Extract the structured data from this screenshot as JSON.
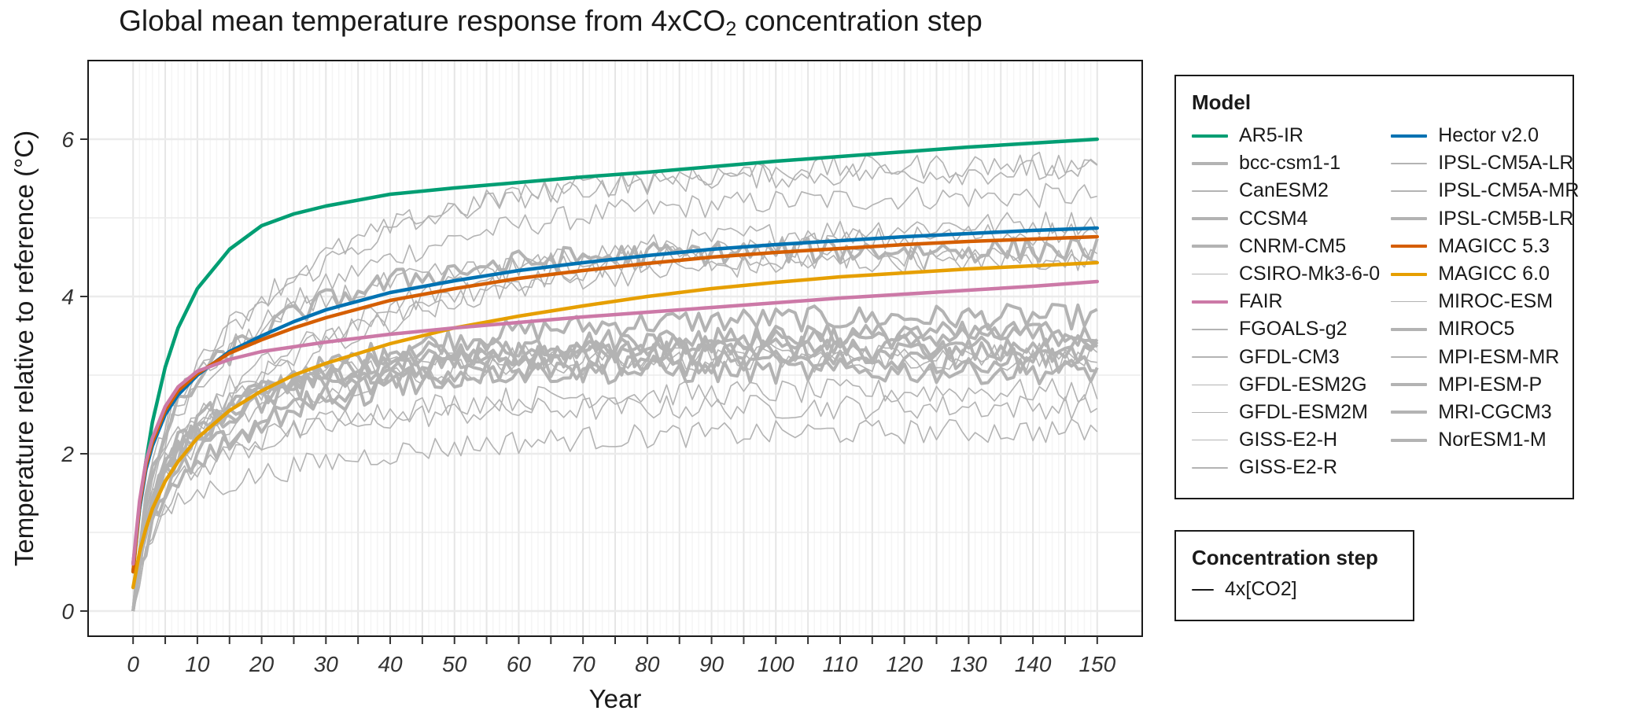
{
  "chart_data": {
    "type": "line",
    "title_prefix": "Global mean temperature response from 4xCO",
    "title_sub": "2",
    "title_suffix": " concentration step",
    "xlabel": "Year",
    "ylabel": "Temperature relative to reference (°C)",
    "xlim": [
      -7,
      157
    ],
    "ylim": [
      -0.32,
      7.0
    ],
    "x_ticks": [
      0,
      10,
      20,
      30,
      40,
      50,
      60,
      70,
      80,
      90,
      100,
      110,
      120,
      130,
      140,
      150
    ],
    "x_tick_labels": [
      "0",
      "10",
      "20",
      "30",
      "40",
      "50",
      "60",
      "70",
      "80",
      "90",
      "100",
      "110",
      "120",
      "130",
      "140",
      "150"
    ],
    "y_ticks": [
      0,
      2,
      4,
      6
    ],
    "y_tick_labels": [
      "0",
      "2",
      "4",
      "6"
    ],
    "grid": true,
    "legend_placement": "right",
    "legend_title": "Model",
    "legend2_title": "Concentration step",
    "legend2_items": [
      {
        "label": "4x[CO2]",
        "color": "#1a1a1a"
      }
    ],
    "emulators": [
      {
        "name": "AR5-IR",
        "color": "#009E73",
        "points": [
          [
            0,
            0.5
          ],
          [
            1,
            1.3
          ],
          [
            2,
            1.9
          ],
          [
            3,
            2.4
          ],
          [
            5,
            3.1
          ],
          [
            7,
            3.6
          ],
          [
            10,
            4.1
          ],
          [
            15,
            4.6
          ],
          [
            20,
            4.9
          ],
          [
            25,
            5.05
          ],
          [
            30,
            5.15
          ],
          [
            40,
            5.3
          ],
          [
            50,
            5.38
          ],
          [
            60,
            5.45
          ],
          [
            70,
            5.52
          ],
          [
            80,
            5.58
          ],
          [
            90,
            5.65
          ],
          [
            100,
            5.72
          ],
          [
            110,
            5.78
          ],
          [
            120,
            5.84
          ],
          [
            130,
            5.9
          ],
          [
            140,
            5.95
          ],
          [
            150,
            6.0
          ]
        ]
      },
      {
        "name": "Hector v2.0",
        "color": "#0072B2",
        "points": [
          [
            0,
            0.6
          ],
          [
            1,
            1.3
          ],
          [
            2,
            1.8
          ],
          [
            3,
            2.1
          ],
          [
            5,
            2.5
          ],
          [
            7,
            2.75
          ],
          [
            10,
            3.0
          ],
          [
            15,
            3.3
          ],
          [
            20,
            3.5
          ],
          [
            25,
            3.68
          ],
          [
            30,
            3.83
          ],
          [
            40,
            4.05
          ],
          [
            50,
            4.2
          ],
          [
            60,
            4.33
          ],
          [
            70,
            4.43
          ],
          [
            80,
            4.52
          ],
          [
            90,
            4.6
          ],
          [
            100,
            4.66
          ],
          [
            110,
            4.71
          ],
          [
            120,
            4.76
          ],
          [
            130,
            4.8
          ],
          [
            140,
            4.84
          ],
          [
            150,
            4.87
          ]
        ]
      },
      {
        "name": "MAGICC 5.3",
        "color": "#D55E00",
        "points": [
          [
            0,
            0.5
          ],
          [
            1,
            1.35
          ],
          [
            2,
            1.85
          ],
          [
            3,
            2.15
          ],
          [
            5,
            2.55
          ],
          [
            7,
            2.8
          ],
          [
            10,
            3.02
          ],
          [
            15,
            3.28
          ],
          [
            20,
            3.45
          ],
          [
            25,
            3.6
          ],
          [
            30,
            3.73
          ],
          [
            40,
            3.95
          ],
          [
            50,
            4.1
          ],
          [
            60,
            4.23
          ],
          [
            70,
            4.33
          ],
          [
            80,
            4.42
          ],
          [
            90,
            4.5
          ],
          [
            100,
            4.56
          ],
          [
            110,
            4.61
          ],
          [
            120,
            4.66
          ],
          [
            130,
            4.7
          ],
          [
            140,
            4.73
          ],
          [
            150,
            4.76
          ]
        ]
      },
      {
        "name": "MAGICC 6.0",
        "color": "#E69F00",
        "points": [
          [
            0,
            0.3
          ],
          [
            1,
            0.75
          ],
          [
            2,
            1.05
          ],
          [
            3,
            1.3
          ],
          [
            5,
            1.65
          ],
          [
            7,
            1.9
          ],
          [
            10,
            2.2
          ],
          [
            15,
            2.55
          ],
          [
            20,
            2.8
          ],
          [
            25,
            3.0
          ],
          [
            30,
            3.15
          ],
          [
            40,
            3.4
          ],
          [
            50,
            3.6
          ],
          [
            60,
            3.75
          ],
          [
            70,
            3.88
          ],
          [
            80,
            4.0
          ],
          [
            90,
            4.1
          ],
          [
            100,
            4.18
          ],
          [
            110,
            4.25
          ],
          [
            120,
            4.3
          ],
          [
            130,
            4.35
          ],
          [
            140,
            4.39
          ],
          [
            150,
            4.43
          ]
        ]
      },
      {
        "name": "FAIR",
        "color": "#CC79A7",
        "points": [
          [
            0,
            0.6
          ],
          [
            1,
            1.4
          ],
          [
            2,
            1.9
          ],
          [
            3,
            2.2
          ],
          [
            5,
            2.6
          ],
          [
            7,
            2.85
          ],
          [
            10,
            3.05
          ],
          [
            15,
            3.2
          ],
          [
            20,
            3.3
          ],
          [
            25,
            3.36
          ],
          [
            30,
            3.42
          ],
          [
            40,
            3.52
          ],
          [
            50,
            3.6
          ],
          [
            60,
            3.67
          ],
          [
            70,
            3.74
          ],
          [
            80,
            3.8
          ],
          [
            90,
            3.86
          ],
          [
            100,
            3.92
          ],
          [
            110,
            3.98
          ],
          [
            120,
            4.03
          ],
          [
            130,
            4.08
          ],
          [
            140,
            4.13
          ],
          [
            150,
            4.19
          ]
        ]
      }
    ],
    "esm_color": "#b3b3b3",
    "esm_models": [
      {
        "name": "bcc-csm1-1",
        "thick": true,
        "eq": 3.35,
        "tau": 18,
        "fast": 1.5
      },
      {
        "name": "CanESM2",
        "thick": false,
        "eq": 5.3,
        "tau": 28,
        "fast": 1.9
      },
      {
        "name": "CCSM4",
        "thick": true,
        "eq": 3.5,
        "tau": 22,
        "fast": 1.6
      },
      {
        "name": "CNRM-CM5",
        "thick": true,
        "eq": 3.75,
        "tau": 25,
        "fast": 1.6
      },
      {
        "name": "CSIRO-Mk3-6-0",
        "thick": false,
        "eq": 5.0,
        "tau": 35,
        "fast": 1.4
      },
      {
        "name": "FGOALS-g2",
        "thick": false,
        "eq": 3.2,
        "tau": 20,
        "fast": 1.5
      },
      {
        "name": "GFDL-CM3",
        "thick": false,
        "eq": 4.5,
        "tau": 30,
        "fast": 1.8
      },
      {
        "name": "GFDL-ESM2G",
        "thick": false,
        "eq": 2.6,
        "tau": 18,
        "fast": 1.2
      },
      {
        "name": "GFDL-ESM2M",
        "thick": false,
        "eq": 2.8,
        "tau": 22,
        "fast": 1.3
      },
      {
        "name": "GISS-E2-H",
        "thick": false,
        "eq": 3.25,
        "tau": 15,
        "fast": 1.7
      },
      {
        "name": "GISS-E2-R",
        "thick": false,
        "eq": 2.3,
        "tau": 30,
        "fast": 1.2
      },
      {
        "name": "IPSL-CM5A-LR",
        "thick": false,
        "eq": 5.6,
        "tau": 25,
        "fast": 2.0
      },
      {
        "name": "IPSL-CM5A-MR",
        "thick": false,
        "eq": 5.7,
        "tau": 28,
        "fast": 2.0
      },
      {
        "name": "IPSL-CM5B-LR",
        "thick": true,
        "eq": 3.05,
        "tau": 12,
        "fast": 1.6
      },
      {
        "name": "MIROC-ESM",
        "thick": false,
        "eq": 4.9,
        "tau": 40,
        "fast": 1.6
      },
      {
        "name": "MIROC5",
        "thick": true,
        "eq": 3.3,
        "tau": 20,
        "fast": 1.6
      },
      {
        "name": "MPI-ESM-MR",
        "thick": false,
        "eq": 4.5,
        "tau": 20,
        "fast": 2.0
      },
      {
        "name": "MPI-ESM-P",
        "thick": true,
        "eq": 4.6,
        "tau": 22,
        "fast": 2.0
      },
      {
        "name": "MRI-CGCM3",
        "thick": true,
        "eq": 3.2,
        "tau": 25,
        "fast": 1.4
      },
      {
        "name": "NorESM1-M",
        "thick": true,
        "eq": 3.55,
        "tau": 30,
        "fast": 1.3
      }
    ],
    "legend_col1": [
      {
        "label": "AR5-IR",
        "color": "#009E73",
        "width": 4
      },
      {
        "label": "bcc-csm1-1",
        "color": "#b3b3b3",
        "width": 4
      },
      {
        "label": "CanESM2",
        "color": "#b3b3b3",
        "width": 1.5
      },
      {
        "label": "CCSM4",
        "color": "#b3b3b3",
        "width": 4
      },
      {
        "label": "CNRM-CM5",
        "color": "#b3b3b3",
        "width": 4
      },
      {
        "label": "CSIRO-Mk3-6-0",
        "color": "#b3b3b3",
        "width": 1.5
      },
      {
        "label": "FAIR",
        "color": "#CC79A7",
        "width": 4
      },
      {
        "label": "FGOALS-g2",
        "color": "#b3b3b3",
        "width": 1.5
      },
      {
        "label": "GFDL-CM3",
        "color": "#b3b3b3",
        "width": 1.5
      },
      {
        "label": "GFDL-ESM2G",
        "color": "#b3b3b3",
        "width": 1.5
      },
      {
        "label": "GFDL-ESM2M",
        "color": "#b3b3b3",
        "width": 1.5
      },
      {
        "label": "GISS-E2-H",
        "color": "#b3b3b3",
        "width": 1.5
      },
      {
        "label": "GISS-E2-R",
        "color": "#b3b3b3",
        "width": 1.5
      }
    ],
    "legend_col2": [
      {
        "label": "Hector v2.0",
        "color": "#0072B2",
        "width": 4
      },
      {
        "label": "IPSL-CM5A-LR",
        "color": "#b3b3b3",
        "width": 1.5
      },
      {
        "label": "IPSL-CM5A-MR",
        "color": "#b3b3b3",
        "width": 1.5
      },
      {
        "label": "IPSL-CM5B-LR",
        "color": "#b3b3b3",
        "width": 4
      },
      {
        "label": "MAGICC 5.3",
        "color": "#D55E00",
        "width": 4
      },
      {
        "label": "MAGICC 6.0",
        "color": "#E69F00",
        "width": 4
      },
      {
        "label": "MIROC-ESM",
        "color": "#b3b3b3",
        "width": 1.5
      },
      {
        "label": "MIROC5",
        "color": "#b3b3b3",
        "width": 4
      },
      {
        "label": "MPI-ESM-MR",
        "color": "#b3b3b3",
        "width": 1.5
      },
      {
        "label": "MPI-ESM-P",
        "color": "#b3b3b3",
        "width": 4
      },
      {
        "label": "MRI-CGCM3",
        "color": "#b3b3b3",
        "width": 4
      },
      {
        "label": "NorESM1-M",
        "color": "#b3b3b3",
        "width": 4
      }
    ]
  }
}
